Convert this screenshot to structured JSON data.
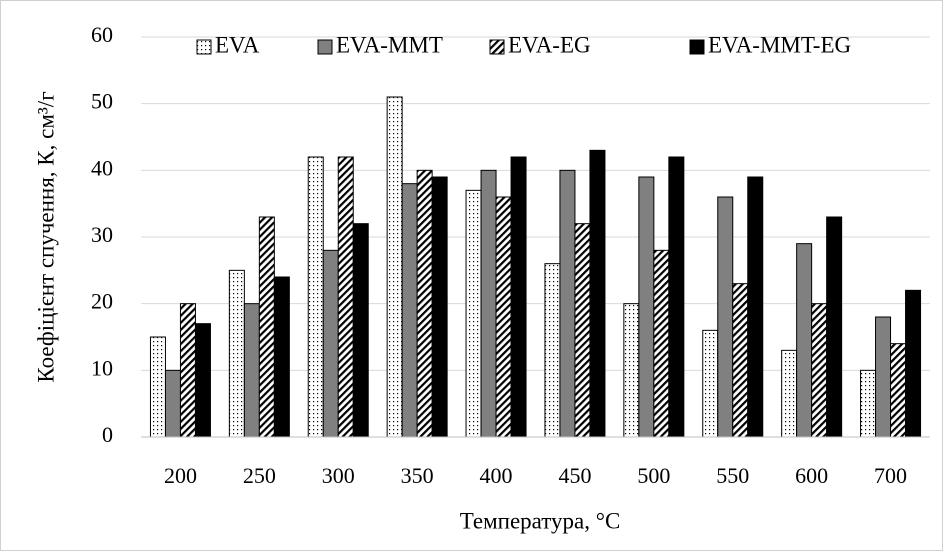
{
  "chart_data": {
    "type": "bar",
    "xlabel": "Температура, °C",
    "ylabel": "Коефіцієнт спучення, К, см³/г",
    "categories": [
      "200",
      "250",
      "300",
      "350",
      "400",
      "450",
      "500",
      "550",
      "600",
      "700"
    ],
    "series": [
      {
        "name": "EVA",
        "color": "#ffffff",
        "pattern": "dots",
        "values": [
          15,
          25,
          42,
          51,
          37,
          26,
          20,
          16,
          13,
          10
        ]
      },
      {
        "name": "EVA-MMT",
        "color": "#808080",
        "pattern": "solid",
        "values": [
          10,
          20,
          28,
          38,
          40,
          40,
          39,
          36,
          29,
          18
        ]
      },
      {
        "name": "EVA-EG",
        "color": "#ffffff",
        "pattern": "hatch",
        "values": [
          20,
          33,
          42,
          40,
          36,
          32,
          28,
          23,
          20,
          14
        ]
      },
      {
        "name": "EVA-MMT-EG",
        "color": "#000000",
        "pattern": "solid",
        "values": [
          17,
          24,
          32,
          39,
          42,
          43,
          42,
          39,
          33,
          22
        ]
      }
    ],
    "ylim": [
      0,
      60
    ],
    "yticks": [
      0,
      10,
      20,
      30,
      40,
      50,
      60
    ],
    "grid": true,
    "legend": "top"
  }
}
